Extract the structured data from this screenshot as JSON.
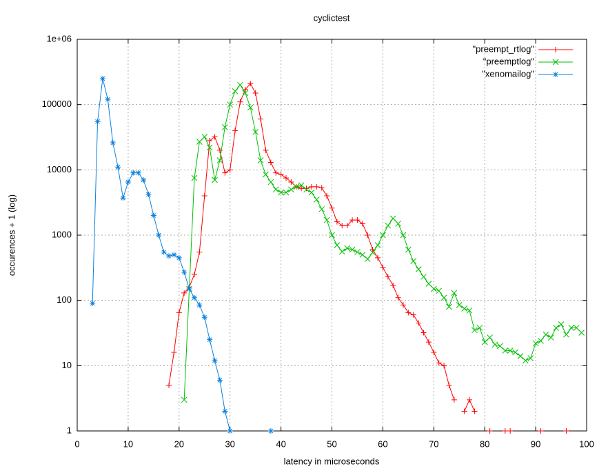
{
  "chart_data": {
    "type": "line",
    "title": "cyclictest",
    "x_label": "latency in microseconds",
    "y_label": "occurences + 1 (log)",
    "ylog": true,
    "grid": true,
    "legend": "top-right",
    "xlim": [
      0,
      100
    ],
    "xticks": [
      0,
      10,
      20,
      30,
      40,
      50,
      60,
      70,
      80,
      90,
      100
    ],
    "ylim": [
      1,
      1000000
    ],
    "yticks": [
      1,
      10,
      100,
      1000,
      10000,
      100000,
      {
        "value": 1000000,
        "label": "1e+06"
      }
    ],
    "x": [
      3,
      4,
      5,
      6,
      7,
      8,
      9,
      10,
      11,
      12,
      13,
      14,
      15,
      16,
      17,
      18,
      19,
      20,
      21,
      22,
      23,
      24,
      25,
      26,
      27,
      28,
      29,
      30,
      31,
      32,
      33,
      34,
      35,
      36,
      37,
      38,
      39,
      40,
      41,
      42,
      43,
      44,
      45,
      46,
      47,
      48,
      49,
      50,
      51,
      52,
      53,
      54,
      55,
      56,
      57,
      58,
      59,
      60,
      61,
      62,
      63,
      64,
      65,
      66,
      67,
      68,
      69,
      70,
      71,
      72,
      73,
      74,
      75,
      76,
      77,
      78,
      79,
      80,
      81,
      82,
      83,
      84,
      85,
      86,
      87,
      88,
      89,
      90,
      91,
      92,
      93,
      94,
      95,
      96,
      97,
      98,
      99
    ],
    "series": [
      {
        "name": "\"preempt_rtlog\"",
        "color": "#ff0000",
        "marker": "plus",
        "values": [
          null,
          null,
          null,
          null,
          null,
          null,
          null,
          null,
          null,
          null,
          null,
          null,
          null,
          null,
          null,
          5,
          16,
          65,
          130,
          160,
          250,
          550,
          4000,
          28000,
          32000,
          20000,
          9000,
          10000,
          40000,
          110000,
          170000,
          210000,
          150000,
          60000,
          20000,
          13000,
          9000,
          8500,
          7500,
          6500,
          5500,
          5200,
          5200,
          5500,
          5500,
          5300,
          4000,
          2600,
          1600,
          1400,
          1400,
          1700,
          1700,
          1500,
          1000,
          600,
          450,
          320,
          230,
          170,
          110,
          85,
          65,
          60,
          45,
          32,
          23,
          16,
          11,
          10,
          5,
          3,
          null,
          2,
          3,
          2,
          null,
          null,
          1,
          null,
          null,
          1,
          1,
          null,
          null,
          null,
          null,
          null,
          1,
          null,
          null,
          null,
          null,
          1,
          null,
          null,
          null
        ]
      },
      {
        "name": "\"preemptlog\"",
        "color": "#00c000",
        "marker": "cross",
        "values": [
          null,
          null,
          null,
          null,
          null,
          null,
          null,
          null,
          null,
          null,
          null,
          null,
          null,
          null,
          null,
          null,
          null,
          null,
          3,
          150,
          7500,
          27000,
          32000,
          22000,
          7000,
          14000,
          45000,
          100000,
          160000,
          200000,
          150000,
          90000,
          38000,
          14000,
          8500,
          6500,
          5000,
          4500,
          4500,
          5000,
          5500,
          5800,
          5000,
          4500,
          3500,
          2500,
          1700,
          1000,
          700,
          560,
          630,
          600,
          550,
          500,
          430,
          540,
          700,
          1000,
          1400,
          1800,
          1500,
          1000,
          600,
          400,
          300,
          230,
          180,
          150,
          140,
          110,
          80,
          130,
          85,
          75,
          70,
          35,
          38,
          23,
          27,
          21,
          20,
          17,
          17,
          16,
          14,
          12,
          13,
          22,
          24,
          30,
          27,
          38,
          43,
          30,
          38,
          38,
          32
        ]
      },
      {
        "name": "\"xenomailog\"",
        "color": "#0a80e0",
        "marker": "star",
        "values": [
          90,
          55000,
          250000,
          120000,
          26000,
          11000,
          3700,
          6500,
          9000,
          9000,
          7000,
          4200,
          2000,
          1000,
          550,
          480,
          500,
          450,
          270,
          150,
          110,
          85,
          55,
          25,
          12,
          6,
          2,
          1,
          null,
          null,
          null,
          null,
          null,
          null,
          null,
          1,
          null,
          null,
          null,
          null,
          null,
          null,
          null,
          null,
          null,
          null,
          null,
          null,
          null,
          null,
          null,
          null,
          null,
          null,
          null,
          null,
          null,
          null,
          null,
          null,
          null,
          null,
          null,
          null,
          null,
          null,
          null,
          null,
          null,
          null,
          null,
          null,
          null,
          null,
          null,
          null,
          null,
          null,
          null,
          null,
          null,
          null,
          null,
          null,
          null,
          null,
          null,
          null,
          null,
          null,
          null,
          null,
          null,
          null,
          null,
          null,
          null
        ]
      }
    ]
  }
}
